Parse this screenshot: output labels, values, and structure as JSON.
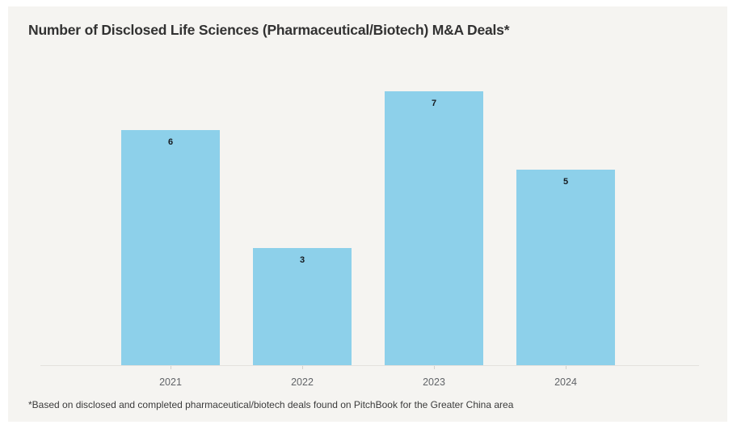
{
  "page": {
    "background": "#ffffff",
    "card_background": "#f5f4f1"
  },
  "header": {
    "title": "Number of Disclosed Life Sciences (Pharmaceutical/Biotech) M&A Deals*"
  },
  "chart_data": {
    "type": "bar",
    "title": "Number of Disclosed Life Sciences (Pharmaceutical/Biotech) M&A Deals*",
    "categories": [
      "2021",
      "2022",
      "2023",
      "2024"
    ],
    "values": [
      6,
      3,
      7,
      5
    ],
    "xlabel": "",
    "ylabel": "",
    "ylim": [
      0,
      7.7
    ],
    "grid": false,
    "legend_position": "none",
    "data_labels": "inside-top",
    "bar_color": "#8DD0EA",
    "value_label_color": "#15191e",
    "axis_line_color": "#e3e1dd",
    "tick_label_color": "#616468"
  },
  "footnote": "*Based on disclosed and completed pharmaceutical/biotech deals found on PitchBook for the Greater China area"
}
